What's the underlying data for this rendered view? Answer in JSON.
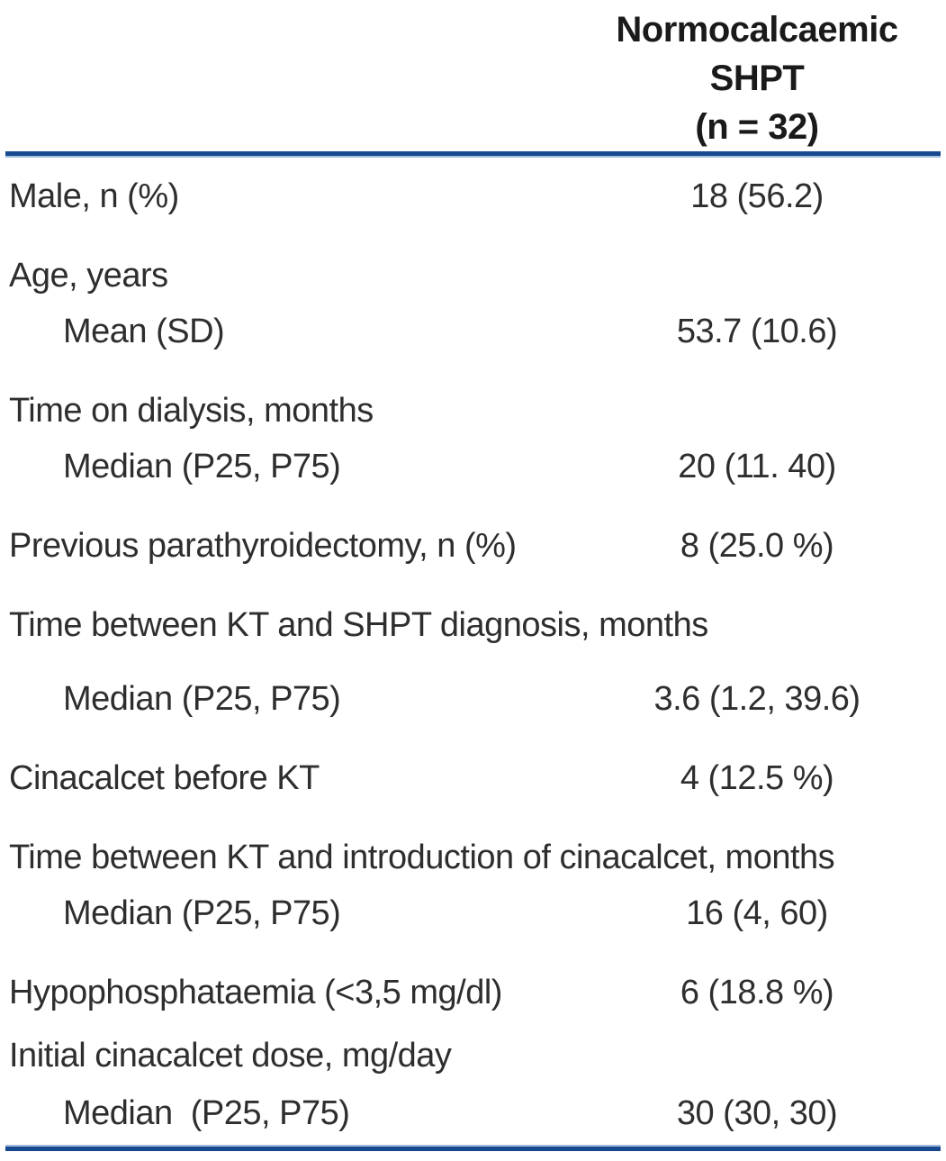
{
  "table": {
    "header": {
      "lines": [
        "Normocalcaemic",
        "SHPT",
        "(n = 32)"
      ]
    },
    "sections": [
      {
        "label": "Male, n (%)",
        "value": "18 (56.2)"
      },
      {
        "label": "Age, years",
        "value": "",
        "subrows": [
          {
            "label": "Mean (SD)",
            "value": "53.7 (10.6)"
          }
        ]
      },
      {
        "label": "Time on dialysis, months",
        "value": "",
        "subrows": [
          {
            "label": "Median (P25, P75)",
            "value": "20 (11. 40)"
          }
        ]
      },
      {
        "label": "Previous parathyroidectomy, n (%)",
        "value": "8 (25.0 %)"
      },
      {
        "label": "Time between KT and SHPT diagnosis, months",
        "value": "",
        "subrows": [
          {
            "label": "Median (P25, P75)",
            "value": "3.6 (1.2, 39.6)"
          }
        ]
      },
      {
        "label": "Cinacalcet before KT",
        "value": "4 (12.5 %)"
      },
      {
        "label": "Time between KT and introduction of cinacalcet, months",
        "value": "",
        "subrows": [
          {
            "label": "Median (P25, P75)",
            "value": "16 (4, 60)"
          }
        ]
      },
      {
        "label": "Hypophosphataemia (<3,5 mg/dl)",
        "value": "6 (18.8 %)"
      },
      {
        "label": "Initial cinacalcet dose, mg/day",
        "value": "",
        "subrows": [
          {
            "label": "Median  (P25, P75)",
            "value": "30 (30, 30)"
          }
        ]
      }
    ],
    "colors": {
      "rule_dark": "#17498f",
      "rule_light": "#a3bcdc",
      "header_text": "#1a1a1a",
      "body_text": "#2e2e2e"
    }
  }
}
